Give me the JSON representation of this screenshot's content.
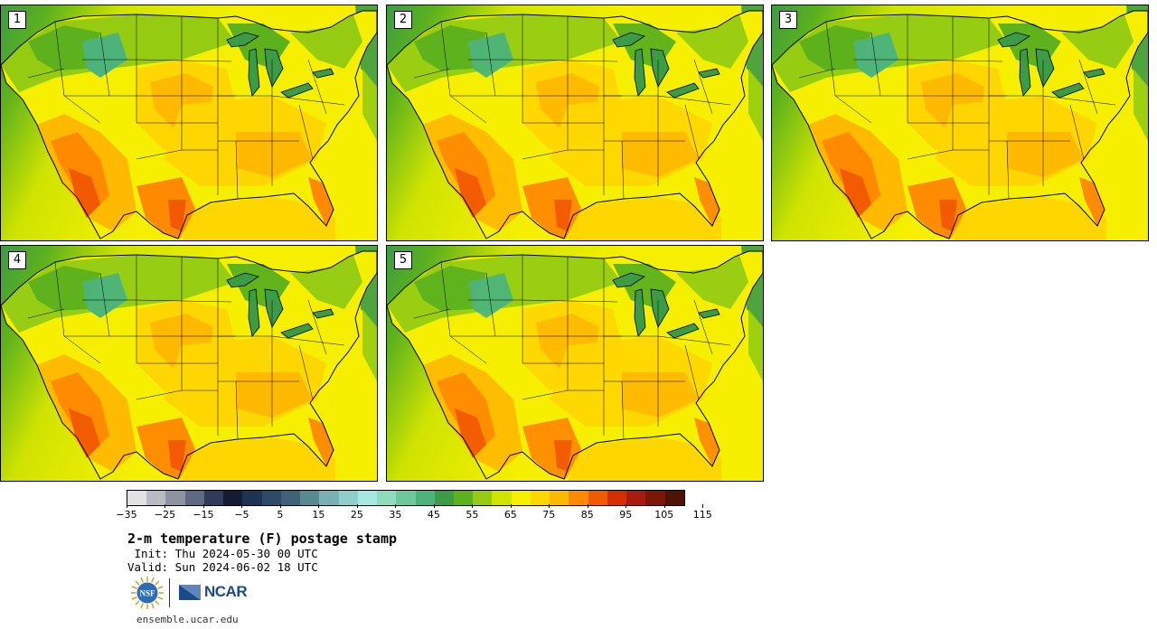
{
  "panels": [
    {
      "label": "1",
      "variant": 1.0
    },
    {
      "label": "2",
      "variant": 0.85
    },
    {
      "label": "3",
      "variant": 0.95
    },
    {
      "label": "4",
      "variant": 0.9
    },
    {
      "label": "5",
      "variant": 0.8
    }
  ],
  "colorbar": {
    "colors": [
      "#e2e2e2",
      "#b9bbc2",
      "#8c93a2",
      "#5f6a82",
      "#2f3b58",
      "#141d30",
      "#1f3352",
      "#2d4a68",
      "#3e6378",
      "#578990",
      "#77b1b4",
      "#8fcfcb",
      "#a6eadf",
      "#8edcbc",
      "#6fc89c",
      "#4cb47a",
      "#3c9c45",
      "#5cb11c",
      "#95cc12",
      "#cfe400",
      "#f6f000",
      "#ffd600",
      "#ffb900",
      "#ff8a00",
      "#f25a00",
      "#d52e00",
      "#a71c0c",
      "#7c1609",
      "#4f1206"
    ],
    "tick_labels": [
      "−35",
      "−25",
      "−15",
      "−5",
      "5",
      "15",
      "25",
      "35",
      "45",
      "55",
      "65",
      "75",
      "85",
      "95",
      "105",
      "115"
    ]
  },
  "title": "2-m temperature (F) postage stamp",
  "init_text": " Init: Thu 2024-05-30 00 UTC",
  "valid_text": "Valid: Sun 2024-06-02 18 UTC",
  "logo": {
    "nsf_text": "NSF",
    "ncar_text": "NCAR"
  },
  "url": "ensemble.ucar.edu"
}
